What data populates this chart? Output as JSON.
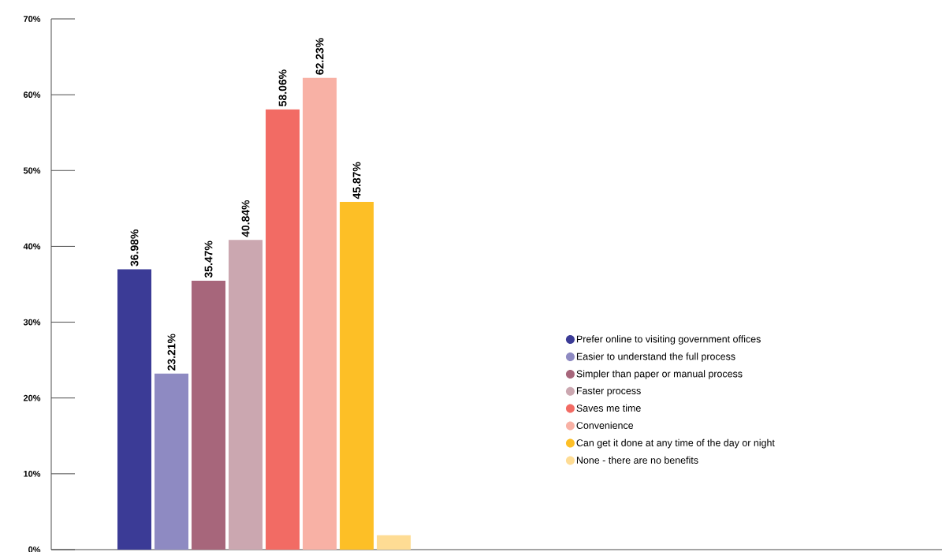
{
  "chart_data": {
    "type": "bar",
    "categories": [
      null
    ],
    "series": [
      {
        "name": "Prefer online to visiting government offices",
        "color": "#3b3b96",
        "values": [
          36.98
        ],
        "value_labels": [
          "36.98%"
        ]
      },
      {
        "name": "Easier to understand the full process",
        "color": "#8e8ac2",
        "values": [
          23.21
        ],
        "value_labels": [
          "23.21%"
        ]
      },
      {
        "name": "Simpler than paper or manual process",
        "color": "#a7667b",
        "values": [
          35.47
        ],
        "value_labels": [
          "35.47%"
        ]
      },
      {
        "name": "Faster process",
        "color": "#cba7b0",
        "values": [
          40.84
        ],
        "value_labels": [
          "40.84%"
        ]
      },
      {
        "name": "Saves me time",
        "color": "#f26b64",
        "values": [
          58.06
        ],
        "value_labels": [
          "58.06%"
        ]
      },
      {
        "name": "Convenience",
        "color": "#f8b1a5",
        "values": [
          62.23
        ],
        "value_labels": [
          "62.23%"
        ]
      },
      {
        "name": "Can get it done at any time of the day or night",
        "color": "#fdbf26",
        "values": [
          45.87
        ],
        "value_labels": [
          "45.87%"
        ]
      },
      {
        "name": "None - there are no benefits",
        "color": "#fedc94",
        "values": [
          1.9
        ],
        "value_labels": [
          null
        ]
      }
    ],
    "ylim": [
      0,
      70
    ],
    "yticks": [
      {
        "value": 0,
        "label": "0%"
      },
      {
        "value": 10,
        "label": "10%"
      },
      {
        "value": 20,
        "label": "20%"
      },
      {
        "value": 30,
        "label": "30%"
      },
      {
        "value": 40,
        "label": "40%"
      },
      {
        "value": 50,
        "label": "50%"
      },
      {
        "value": 60,
        "label": "60%"
      },
      {
        "value": 70,
        "label": "70%"
      }
    ],
    "legend": "right"
  }
}
